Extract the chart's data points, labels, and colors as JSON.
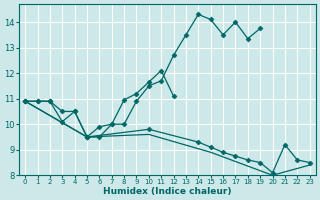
{
  "xlabel": "Humidex (Indice chaleur)",
  "xlim": [
    -0.5,
    23.5
  ],
  "ylim": [
    8.0,
    14.7
  ],
  "yticks": [
    8,
    9,
    10,
    11,
    12,
    13,
    14
  ],
  "xticks": [
    0,
    1,
    2,
    3,
    4,
    5,
    6,
    7,
    8,
    9,
    10,
    11,
    12,
    13,
    14,
    15,
    16,
    17,
    18,
    19,
    20,
    21,
    22,
    23
  ],
  "bg_color": "#cce8e8",
  "grid_color": "#ffffff",
  "line_color": "#006666",
  "line1_x": [
    0,
    1,
    2,
    3,
    4,
    5,
    6,
    7,
    8,
    9,
    10,
    11,
    12,
    13,
    14,
    15,
    16,
    17,
    18,
    19
  ],
  "line1_y": [
    10.9,
    10.9,
    10.9,
    10.1,
    10.5,
    9.5,
    9.5,
    10.0,
    10.0,
    10.9,
    11.5,
    11.7,
    12.7,
    13.5,
    14.3,
    14.1,
    13.5,
    14.0,
    13.35,
    13.75
  ],
  "line2_x": [
    0,
    1,
    2,
    3,
    4,
    5,
    6,
    7,
    8,
    9,
    10,
    11,
    12
  ],
  "line2_y": [
    10.9,
    10.9,
    10.9,
    10.5,
    10.5,
    9.5,
    9.9,
    10.0,
    10.95,
    11.2,
    11.65,
    12.1,
    11.1
  ],
  "line3_x": [
    0,
    5,
    10,
    14,
    15,
    16,
    17,
    18,
    19,
    20,
    21,
    22,
    23
  ],
  "line3_y": [
    10.9,
    9.5,
    9.8,
    9.3,
    9.1,
    8.9,
    8.75,
    8.6,
    8.5,
    8.1,
    9.2,
    8.6,
    8.5
  ],
  "line4_x": [
    0,
    5,
    10,
    15,
    20,
    23
  ],
  "line4_y": [
    10.9,
    9.5,
    9.6,
    8.9,
    8.0,
    8.4
  ]
}
